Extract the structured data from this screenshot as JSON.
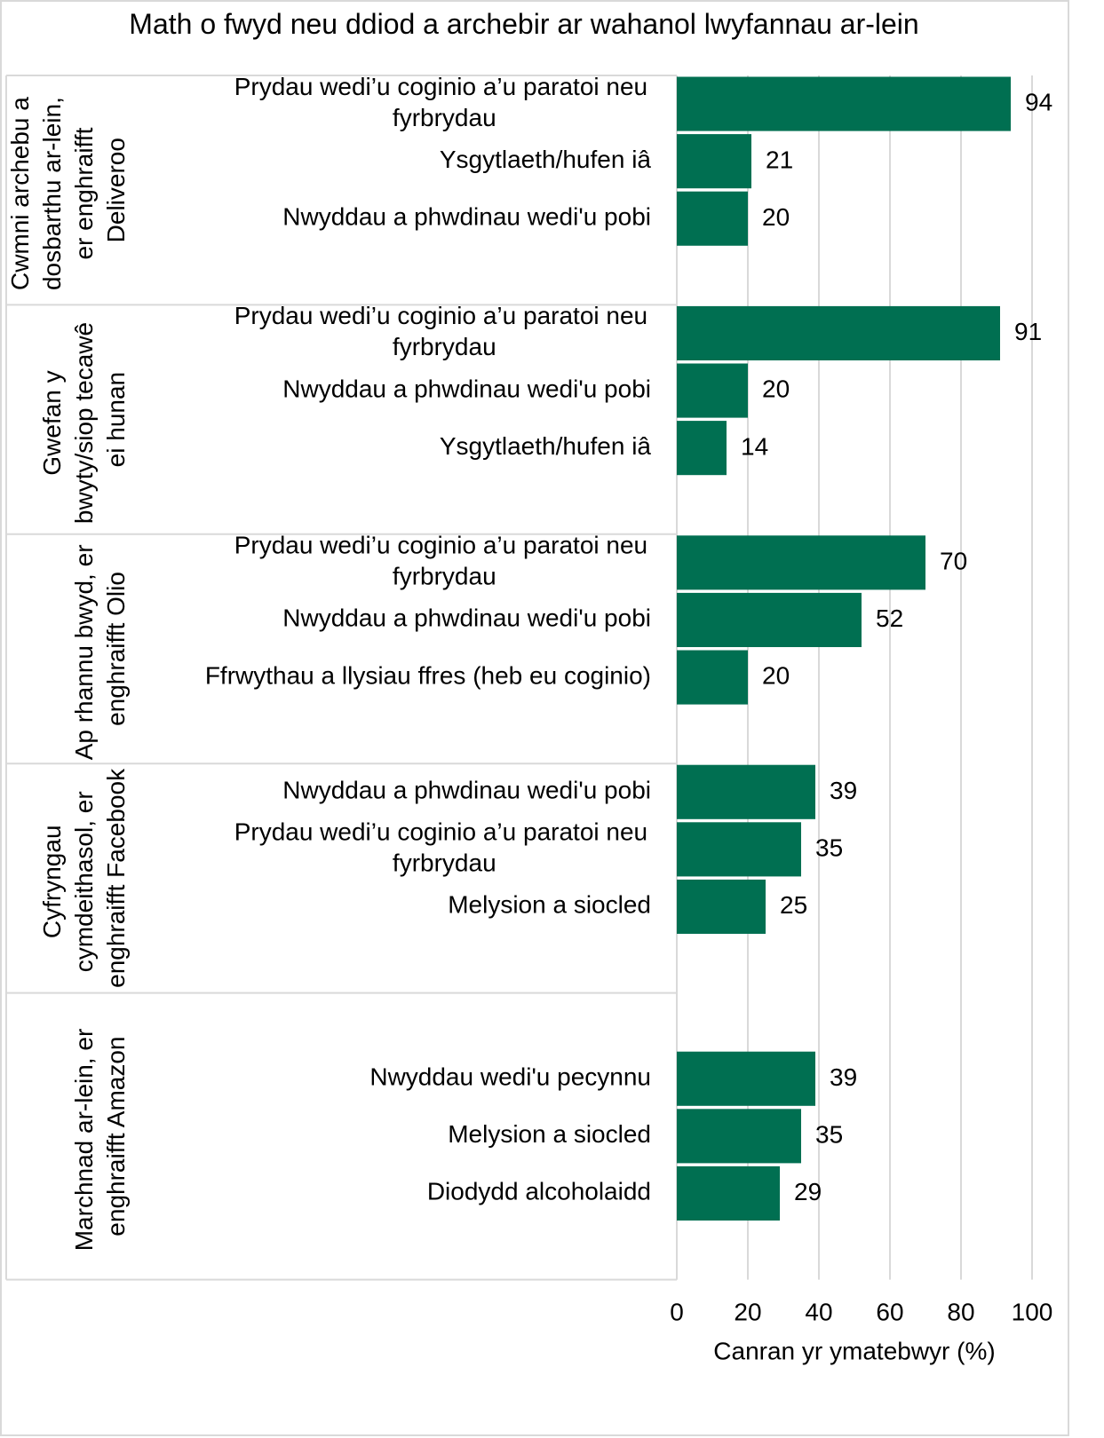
{
  "chart_data": {
    "type": "bar",
    "orientation": "horizontal",
    "title": "Math o fwyd neu ddiod a archebir ar wahanol lwyfannau ar-lein",
    "xlabel": "Canran yr ymatebwyr (%)",
    "color": "#006f51",
    "xlim": [
      0,
      100
    ],
    "xticks": [
      0,
      20,
      40,
      60,
      80,
      100
    ],
    "grid": true,
    "groups": [
      {
        "name": "Cwmni archebu a dosbarthu ar-lein, er enghraifft Deliveroo",
        "categories": [
          "Prydau wedi’u coginio a’u paratoi neu fyrbrydau",
          "Ysgytlaeth/hufen iâ",
          "Nwyddau a phwdinau wedi'u pobi"
        ],
        "values": [
          94,
          21,
          20
        ]
      },
      {
        "name": "Gwefan y bwyty/siop tecawê ei hunan",
        "categories": [
          "Prydau wedi’u coginio a’u paratoi neu fyrbrydau",
          "Nwyddau a phwdinau wedi'u pobi",
          "Ysgytlaeth/hufen iâ"
        ],
        "values": [
          91,
          20,
          14
        ]
      },
      {
        "name": "Ap rhannu bwyd, er enghraifft Olio",
        "categories": [
          "Prydau wedi’u coginio a’u paratoi neu fyrbrydau",
          "Nwyddau a phwdinau wedi'u pobi",
          "Ffrwythau a llysiau ffres (heb eu coginio)"
        ],
        "values": [
          70,
          52,
          20
        ]
      },
      {
        "name": "Cyfryngau cymdeithasol, er enghraifft Facebook",
        "categories": [
          "Nwyddau a phwdinau wedi'u pobi",
          "Prydau wedi’u coginio a’u paratoi neu fyrbrydau",
          "Melysion a siocled"
        ],
        "values": [
          39,
          35,
          25
        ]
      },
      {
        "name": "Marchnad ar-lein, er enghraifft Amazon",
        "categories": [
          "Nwyddau wedi'u pecynnu",
          "Melysion a siocled",
          "Diodydd alcoholaidd"
        ],
        "values": [
          39,
          35,
          29
        ]
      }
    ]
  }
}
